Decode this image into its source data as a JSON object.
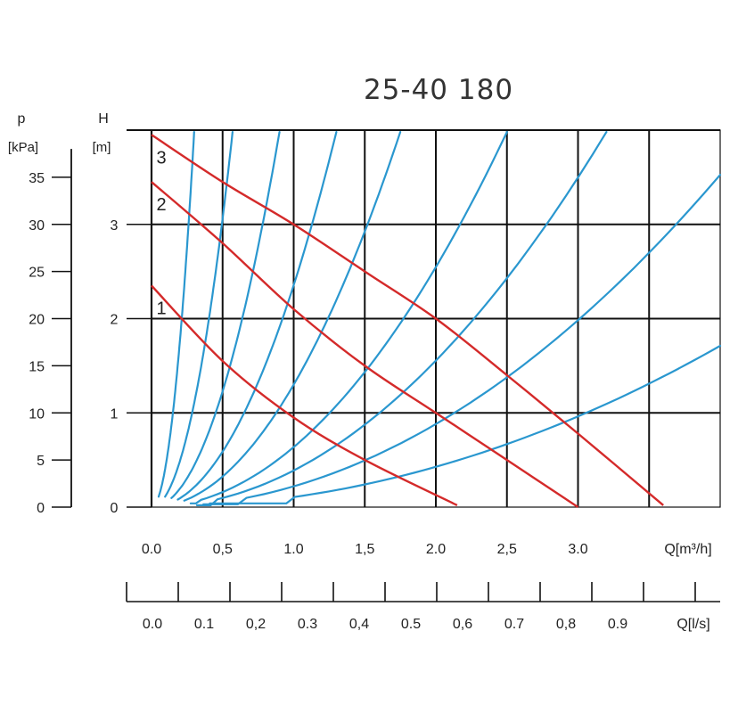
{
  "chart_data": {
    "type": "line",
    "title": "25-40 180",
    "primary_axis": {
      "left_label": "p",
      "left_unit": "[kPa]",
      "left_ticks": [
        "0",
        "5",
        "10",
        "15",
        "20",
        "25",
        "30",
        "35"
      ],
      "left_tick_values": [
        0,
        5,
        10,
        15,
        20,
        25,
        30,
        35
      ],
      "head_label": "H",
      "head_unit": "[m]",
      "head_ticks": [
        "0",
        "1",
        "2",
        "3"
      ],
      "head_tick_values": [
        0,
        1,
        2,
        3
      ],
      "ylim": [
        0,
        4
      ]
    },
    "x_axis": {
      "label": "Q[m³/h]",
      "ticks": [
        "0.0",
        "0,5",
        "1.0",
        "1,5",
        "2.0",
        "2,5",
        "3.0"
      ],
      "tick_values": [
        0,
        0.5,
        1.0,
        1.5,
        2.0,
        2.5,
        3.0
      ],
      "xlim": [
        0,
        4.0
      ]
    },
    "secondary_x_axis": {
      "label": "Q[l/s]",
      "ticks": [
        "0.0",
        "0.1",
        "0,2",
        "0.3",
        "0,4",
        "0.5",
        "0,6",
        "0.7",
        "0,8",
        "0.9"
      ],
      "tick_values": [
        0,
        0.1,
        0.2,
        0.3,
        0.4,
        0.5,
        0.6,
        0.7,
        0.8,
        0.9
      ]
    },
    "grid": true,
    "colors": {
      "pump_curve": "#d42a2a",
      "system_curve": "#2a97cf",
      "grid": "#111111"
    },
    "pump_curves": [
      {
        "name": "1",
        "points": [
          [
            0,
            2.35
          ],
          [
            0.5,
            1.55
          ],
          [
            1.0,
            0.95
          ],
          [
            1.5,
            0.5
          ],
          [
            2.15,
            0.02
          ]
        ]
      },
      {
        "name": "2",
        "points": [
          [
            0,
            3.45
          ],
          [
            0.5,
            2.8
          ],
          [
            1.0,
            2.1
          ],
          [
            1.5,
            1.5
          ],
          [
            2.0,
            1.0
          ],
          [
            2.5,
            0.5
          ],
          [
            3.0,
            0.0
          ]
        ]
      },
      {
        "name": "3",
        "points": [
          [
            0,
            3.95
          ],
          [
            0.5,
            3.45
          ],
          [
            1.0,
            3.0
          ],
          [
            1.5,
            2.5
          ],
          [
            2.0,
            2.0
          ],
          [
            2.5,
            1.4
          ],
          [
            3.0,
            0.78
          ],
          [
            3.6,
            0.02
          ]
        ]
      }
    ],
    "system_curves": [
      {
        "q_at_top": 0.3
      },
      {
        "q_at_top": 0.57
      },
      {
        "q_at_top": 0.9
      },
      {
        "q_at_top": 1.3
      },
      {
        "q_at_top": 1.75
      },
      {
        "q_at_top": 2.5
      },
      {
        "q_at_top": 3.2
      },
      {
        "q_at_top": 4.25
      },
      {
        "q_at_top": 6.1
      }
    ]
  }
}
